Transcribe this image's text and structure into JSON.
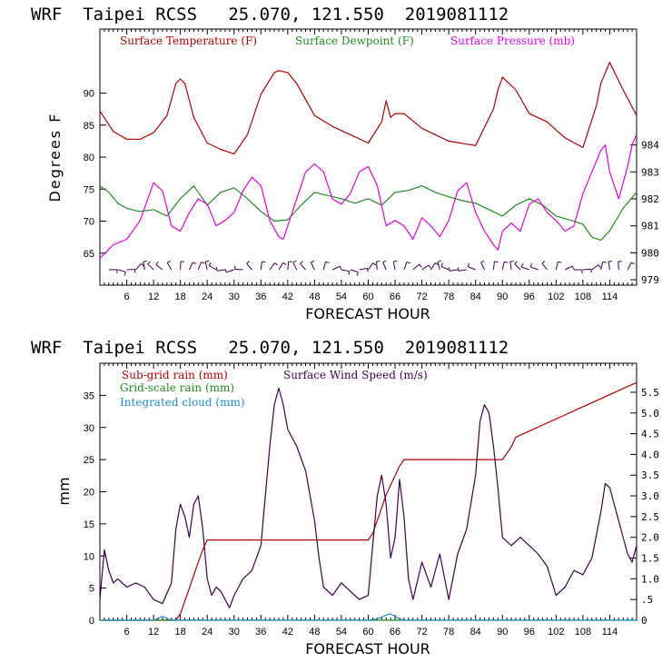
{
  "chart_data": [
    {
      "type": "line",
      "header": "WRF  Taipei RCSS   25.070, 121.550  2019081112",
      "xlabel": "FORECAST HOUR",
      "ylabel": "Degrees F",
      "xlim": [
        0,
        120
      ],
      "ylim": [
        60,
        100
      ],
      "y2lim": [
        978.8,
        988.3
      ],
      "x_ticks": [
        "6",
        "12",
        "18",
        "24",
        "30",
        "36",
        "42",
        "48",
        "54",
        "60",
        "66",
        "72",
        "78",
        "84",
        "90",
        "96",
        "102",
        "108",
        "114"
      ],
      "y_ticks": [
        "65",
        "70",
        "75",
        "80",
        "85",
        "90"
      ],
      "y2_ticks": [
        "979",
        "980",
        "981",
        "982",
        "983",
        "984"
      ],
      "wind_barbs": "wind barbs along the bottom of the panel",
      "series": [
        {
          "name": "Surface Temperature (F)",
          "color": "#b40000",
          "axis": "left",
          "x": [
            0,
            3,
            6,
            9,
            12,
            15,
            17,
            18,
            19,
            21,
            24,
            27,
            30,
            33,
            36,
            39,
            40,
            42,
            44,
            48,
            52,
            56,
            60,
            63,
            64,
            65,
            66,
            68,
            72,
            78,
            84,
            88,
            89,
            90,
            93,
            96,
            100,
            104,
            108,
            111,
            112,
            114,
            117,
            120
          ],
          "y": [
            87.2,
            84,
            82.8,
            82.8,
            83.8,
            86.5,
            91.5,
            92.2,
            91.5,
            86.2,
            82.2,
            81.2,
            80.5,
            83.5,
            89.8,
            93.2,
            93.5,
            93.2,
            91.5,
            86.5,
            84.8,
            83.5,
            82.2,
            85.5,
            88.8,
            86.2,
            86.8,
            86.8,
            84.5,
            82.5,
            81.8,
            87.5,
            90.5,
            92.5,
            90.5,
            86.8,
            85.5,
            83,
            81.5,
            88,
            91.5,
            94.8,
            90.5,
            86.5
          ]
        },
        {
          "name": "Surface Dewpoint (F)",
          "color": "#228b22",
          "axis": "left",
          "x": [
            0,
            2,
            4,
            6,
            9,
            12,
            15,
            18,
            21,
            24,
            27,
            30,
            33,
            36,
            39,
            42,
            45,
            48,
            51,
            54,
            57,
            60,
            63,
            66,
            69,
            72,
            75,
            78,
            81,
            84,
            87,
            90,
            93,
            96,
            99,
            102,
            105,
            108,
            110,
            112,
            114,
            117,
            120
          ],
          "y": [
            75.5,
            74.5,
            72.8,
            72,
            71.5,
            71.8,
            70.8,
            73.5,
            75.5,
            72.5,
            74.5,
            75.2,
            73.5,
            71.5,
            70,
            70.2,
            72.5,
            74.5,
            74,
            73.5,
            72.8,
            73.5,
            72.5,
            74.5,
            74.8,
            75.5,
            74.5,
            73.8,
            73.2,
            72.8,
            71.8,
            70.8,
            72.5,
            73.5,
            72.5,
            70.8,
            70.2,
            69.5,
            67.5,
            67,
            68.5,
            72,
            74.5
          ]
        },
        {
          "name": "Surface Pressure (mb)",
          "color": "#e600e6",
          "axis": "right",
          "x": [
            0,
            3,
            6,
            9,
            12,
            14,
            16,
            18,
            20,
            22,
            24,
            26,
            28,
            30,
            32,
            34,
            36,
            38,
            40,
            41,
            42,
            44,
            46,
            48,
            50,
            52,
            54,
            56,
            58,
            60,
            62,
            64,
            66,
            68,
            70,
            72,
            74,
            76,
            78,
            80,
            82,
            84,
            86,
            88,
            89,
            90,
            92,
            94,
            96,
            98,
            100,
            102,
            104,
            106,
            108,
            110,
            112,
            113,
            114,
            116,
            118,
            119,
            120
          ],
          "y": [
            979.8,
            980.3,
            980.5,
            981.2,
            982.6,
            982.3,
            981.0,
            980.8,
            981.5,
            982.0,
            981.8,
            981.0,
            981.2,
            981.5,
            982.3,
            982.8,
            982.5,
            981.2,
            980.6,
            980.5,
            981.0,
            982.0,
            983.0,
            983.3,
            983.0,
            982.0,
            981.8,
            982.2,
            983.0,
            983.2,
            982.5,
            981.0,
            981.2,
            981.0,
            980.5,
            981.3,
            981.0,
            980.6,
            981.2,
            982.3,
            982.6,
            981.5,
            980.8,
            980.3,
            980.1,
            980.8,
            981.1,
            980.8,
            981.8,
            982.0,
            981.5,
            981.2,
            980.8,
            981.0,
            982.2,
            983.0,
            983.8,
            984.0,
            983.0,
            982.0,
            983.2,
            984.0,
            984.4
          ]
        }
      ]
    },
    {
      "type": "line",
      "header": "WRF  Taipei RCSS   25.070, 121.550  2019081112",
      "xlabel": "FORECAST HOUR",
      "ylabel": "mm",
      "xlim": [
        0,
        120
      ],
      "ylim": [
        0,
        40
      ],
      "y2lim": [
        0,
        6.2
      ],
      "x_ticks": [
        "6",
        "12",
        "18",
        "24",
        "30",
        "36",
        "42",
        "48",
        "54",
        "60",
        "66",
        "72",
        "78",
        "84",
        "90",
        "96",
        "102",
        "108",
        "114"
      ],
      "y_ticks": [
        "0",
        "5",
        "10",
        "15",
        "20",
        "25",
        "30",
        "35"
      ],
      "y2_ticks": [
        "0",
        ".5",
        "1.0",
        "1.5",
        "2.0",
        "2.5",
        "3.0",
        "3.5",
        "4.0",
        "4.5",
        "5.0",
        "5.5"
      ],
      "series": [
        {
          "name": "Sub-grid rain (mm)",
          "color": "#b40000",
          "axis": "left",
          "x": [
            0,
            17,
            18,
            19,
            20,
            21,
            22,
            23,
            24,
            60,
            61,
            62,
            63,
            64,
            65,
            66,
            67,
            68,
            90,
            91,
            92,
            93,
            120
          ],
          "y": [
            0,
            0,
            1,
            3,
            5,
            7,
            9,
            11,
            12.5,
            12.5,
            13.5,
            15.5,
            17.5,
            19.5,
            21,
            22.5,
            24,
            25,
            25,
            26,
            27,
            28.5,
            37
          ]
        },
        {
          "name": "Grid-scale rain (mm)",
          "color": "#228b22",
          "axis": "left",
          "x": [
            0,
            120
          ],
          "y": [
            0,
            0
          ]
        },
        {
          "name": "Integrated cloud (mm)",
          "color": "#1e90d0",
          "axis": "left",
          "x": [
            0,
            12,
            13,
            14,
            15,
            16,
            60,
            62,
            64,
            65,
            66,
            67,
            68,
            120
          ],
          "y": [
            0,
            0,
            0.3,
            0.6,
            0.3,
            0,
            0,
            0.2,
            0.8,
            1.0,
            0.6,
            0.2,
            0,
            0
          ]
        },
        {
          "name": "Surface Wind Speed (m/s)",
          "color": "#3c0050",
          "axis": "right",
          "x": [
            0,
            1,
            2,
            3,
            4,
            6,
            8,
            10,
            12,
            14,
            16,
            17,
            18,
            19,
            20,
            21,
            22,
            23,
            24,
            25,
            26,
            27,
            28,
            29,
            30,
            32,
            34,
            36,
            37,
            38,
            39,
            40,
            41,
            42,
            44,
            46,
            48,
            49,
            50,
            52,
            54,
            56,
            58,
            60,
            61,
            62,
            63,
            64,
            65,
            66,
            67,
            68,
            69,
            70,
            72,
            74,
            76,
            78,
            80,
            82,
            84,
            85,
            86,
            87,
            88,
            89,
            90,
            92,
            94,
            96,
            98,
            100,
            102,
            104,
            106,
            108,
            110,
            112,
            113,
            114,
            116,
            118,
            119,
            120
          ],
          "y": [
            0.5,
            1.7,
            1.2,
            0.9,
            1.0,
            0.8,
            0.9,
            0.8,
            0.5,
            0.4,
            0.9,
            2.2,
            2.8,
            2.5,
            2.0,
            2.8,
            3.0,
            2.2,
            1.0,
            0.6,
            0.8,
            0.7,
            0.5,
            0.3,
            0.6,
            1.0,
            1.2,
            1.8,
            3.0,
            4.2,
            5.2,
            5.6,
            5.2,
            4.6,
            4.2,
            3.6,
            2.4,
            1.5,
            0.8,
            0.6,
            0.9,
            0.7,
            0.5,
            0.6,
            1.8,
            3.0,
            3.5,
            2.8,
            1.5,
            2.0,
            3.4,
            2.5,
            1.0,
            0.5,
            1.4,
            0.8,
            1.6,
            0.5,
            1.6,
            2.2,
            3.5,
            4.8,
            5.2,
            5.0,
            4.2,
            3.2,
            2.0,
            1.8,
            2.0,
            1.8,
            1.6,
            1.3,
            0.6,
            0.8,
            1.2,
            1.1,
            1.5,
            2.6,
            3.3,
            3.2,
            2.4,
            1.6,
            1.4,
            1.8
          ]
        }
      ]
    }
  ]
}
